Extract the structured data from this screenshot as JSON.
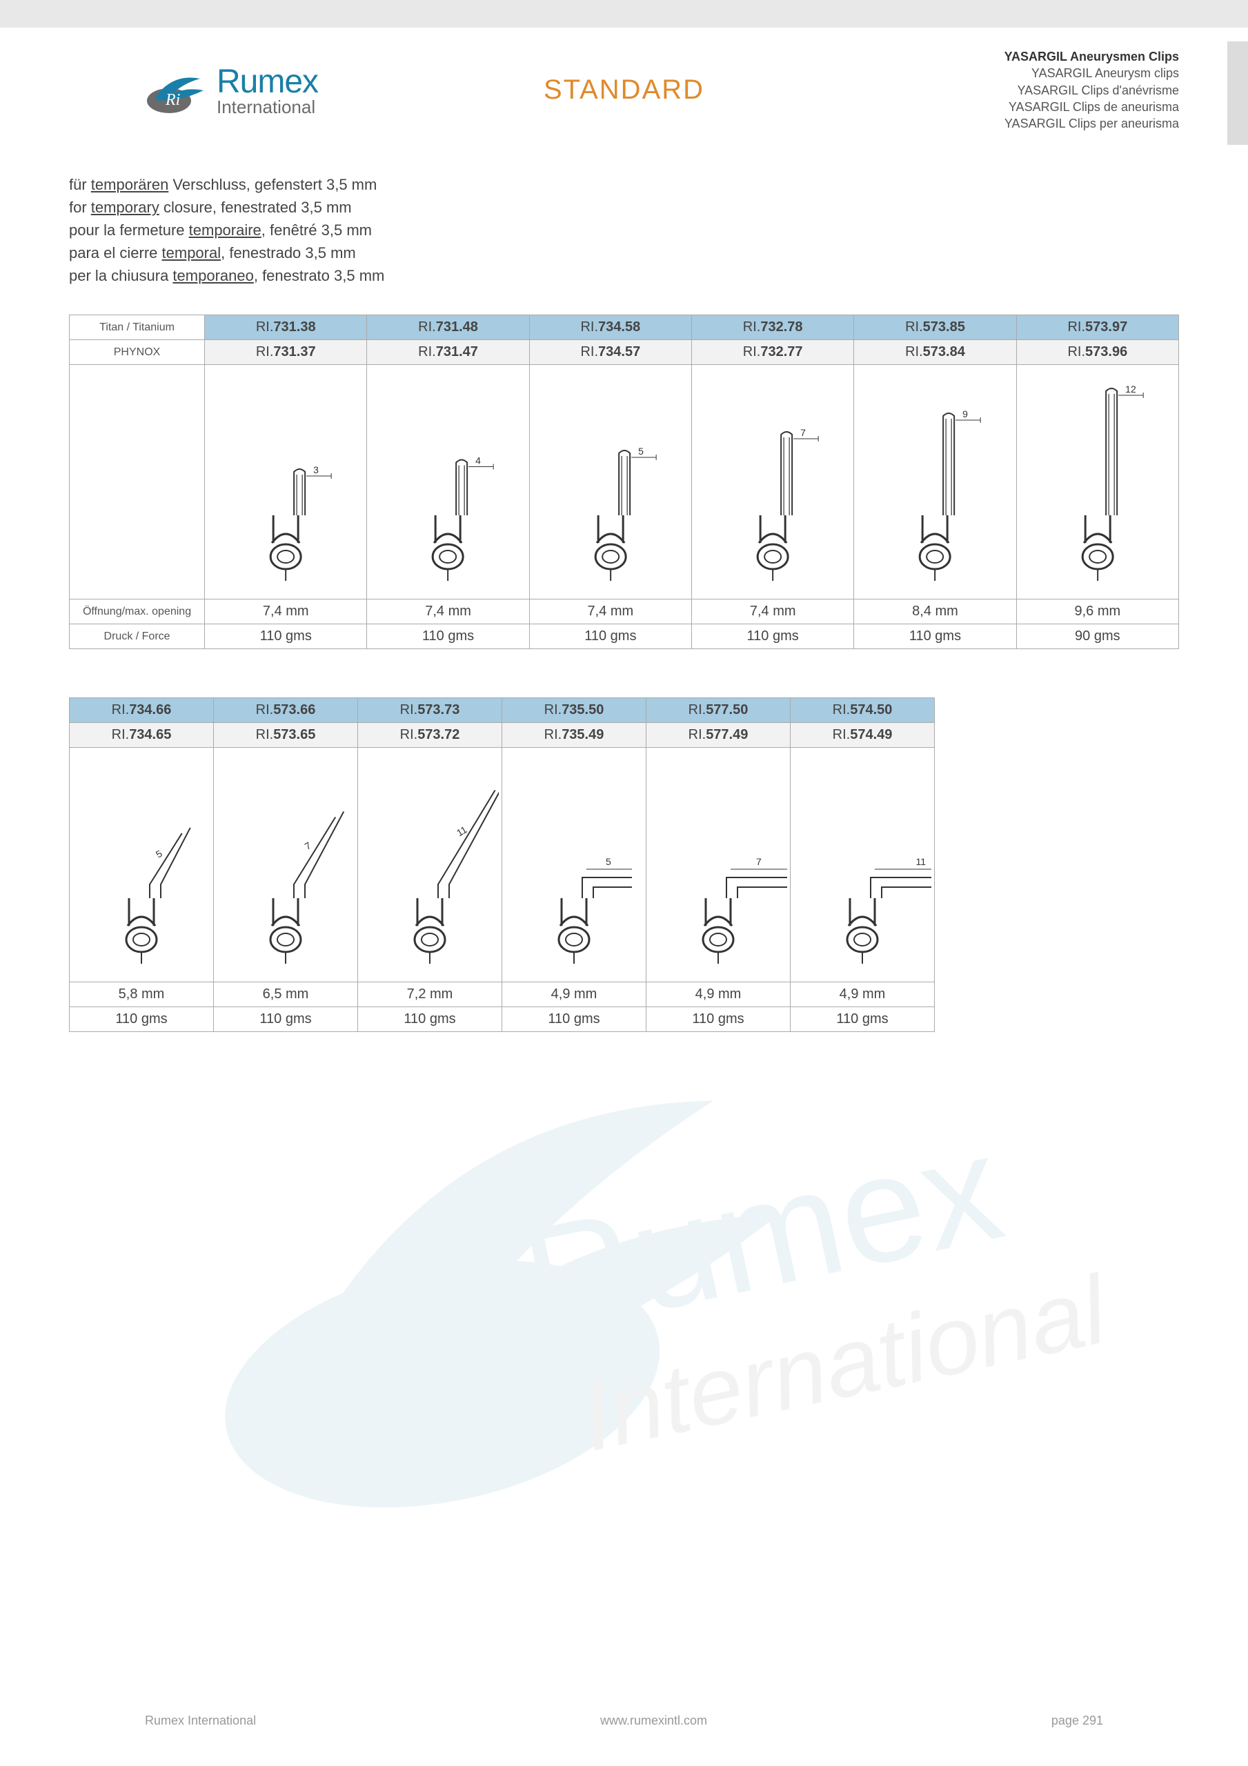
{
  "logo": {
    "brand": "Rumex",
    "sub": "International"
  },
  "standard": "STANDARD",
  "header_right": {
    "main": "YASARGIL Aneurysmen Clips",
    "lines": [
      "YASARGIL Aneurysm clips",
      "YASARGIL Clips d'anévrisme",
      "YASARGIL Clips de aneurisma",
      "YASARGIL Clips per aneurisma"
    ]
  },
  "desc": {
    "de_a": "für ",
    "de_u": "temporären",
    "de_b": " Verschluss, gefenstert 3,5 mm",
    "en_a": "for ",
    "en_u": "temporary",
    "en_b": " closure, fenestrated 3,5 mm",
    "fr_a": "pour la fermeture ",
    "fr_u": "temporaire",
    "fr_b": ", fenêtré 3,5 mm",
    "es_a": "para el cierre ",
    "es_u": "temporal",
    "es_b": ", fenestrado 3,5 mm",
    "it_a": "per la chiusura ",
    "it_u": "temporaneo",
    "it_b": ", fenestrato 3,5 mm"
  },
  "table1": {
    "row_labels": {
      "titan": "Titan / Titanium",
      "phynox": "PHYNOX",
      "opening": "Öffnung/max. opening",
      "force": "Druck / Force"
    },
    "code_prefix": "RI.",
    "cols": [
      {
        "titan": "731.38",
        "phynox": "731.37",
        "dim": "3",
        "opening": "7,4 mm",
        "force": "110 gms",
        "blade_h": 70
      },
      {
        "titan": "731.48",
        "phynox": "731.47",
        "dim": "4",
        "opening": "7,4 mm",
        "force": "110 gms",
        "blade_h": 85
      },
      {
        "titan": "734.58",
        "phynox": "734.57",
        "dim": "5",
        "opening": "7,4 mm",
        "force": "110 gms",
        "blade_h": 100
      },
      {
        "titan": "732.78",
        "phynox": "732.77",
        "dim": "7",
        "opening": "7,4 mm",
        "force": "110 gms",
        "blade_h": 130
      },
      {
        "titan": "573.85",
        "phynox": "573.84",
        "dim": "9",
        "opening": "8,4 mm",
        "force": "110 gms",
        "blade_h": 160
      },
      {
        "titan": "573.97",
        "phynox": "573.96",
        "dim": "12",
        "opening": "9,6 mm",
        "force": "90 gms",
        "blade_h": 200
      }
    ]
  },
  "table2": {
    "code_prefix": "RI.",
    "cols": [
      {
        "titan": "734.66",
        "phynox": "734.65",
        "dim": "5",
        "opening": "5,8 mm",
        "force": "110 gms",
        "shape": "angle",
        "blade_h": 100
      },
      {
        "titan": "573.66",
        "phynox": "573.65",
        "dim": "7",
        "opening": "6,5 mm",
        "force": "110 gms",
        "shape": "angle",
        "blade_h": 130
      },
      {
        "titan": "573.73",
        "phynox": "573.72",
        "dim": "11",
        "opening": "7,2 mm",
        "force": "110 gms",
        "shape": "angle",
        "blade_h": 180
      },
      {
        "titan": "735.50",
        "phynox": "735.49",
        "dim": "5",
        "opening": "4,9 mm",
        "force": "110 gms",
        "shape": "right",
        "blade_h": 80
      },
      {
        "titan": "577.50",
        "phynox": "577.49",
        "dim": "7",
        "opening": "4,9 mm",
        "force": "110 gms",
        "shape": "right",
        "blade_h": 100
      },
      {
        "titan": "574.50",
        "phynox": "574.49",
        "dim": "11",
        "opening": "4,9 mm",
        "force": "110 gms",
        "shape": "right",
        "blade_h": 150
      }
    ]
  },
  "footer": {
    "left": "Rumex International",
    "mid": "www.rumexintl.com",
    "right": "page 291"
  },
  "colors": {
    "titan_bg": "#a7cbe0",
    "phynox_bg": "#f2f2f2",
    "border": "#aaaaaa",
    "logo_blue": "#1a7fa8",
    "logo_grey": "#6b6b6b",
    "accent": "#e08a2b"
  }
}
